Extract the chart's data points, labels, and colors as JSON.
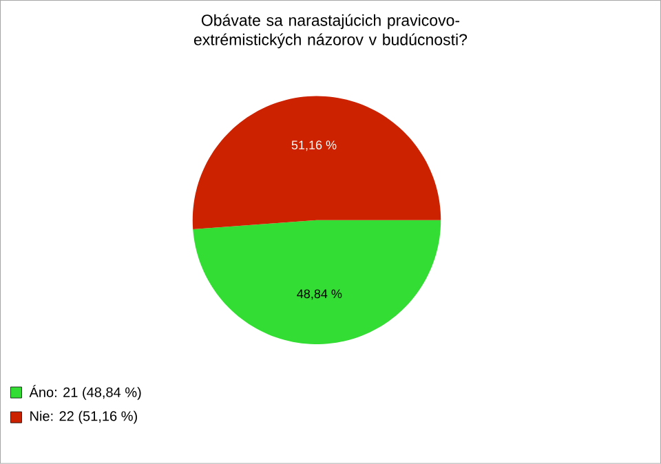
{
  "chart_data": {
    "type": "pie",
    "title": "Obávate sa narastajúcich pravicovo-extrémistických názorov v budúcnosti?",
    "categories": [
      "Áno: 21 (48,84 %)",
      "Nie: 22 (51,16 %)"
    ],
    "values": [
      48.84,
      51.16
    ],
    "colors": [
      "#33dd33",
      "#cc2200"
    ],
    "value_labels": [
      "48,84 %",
      "51,16 %"
    ],
    "legend": "bottom left"
  }
}
